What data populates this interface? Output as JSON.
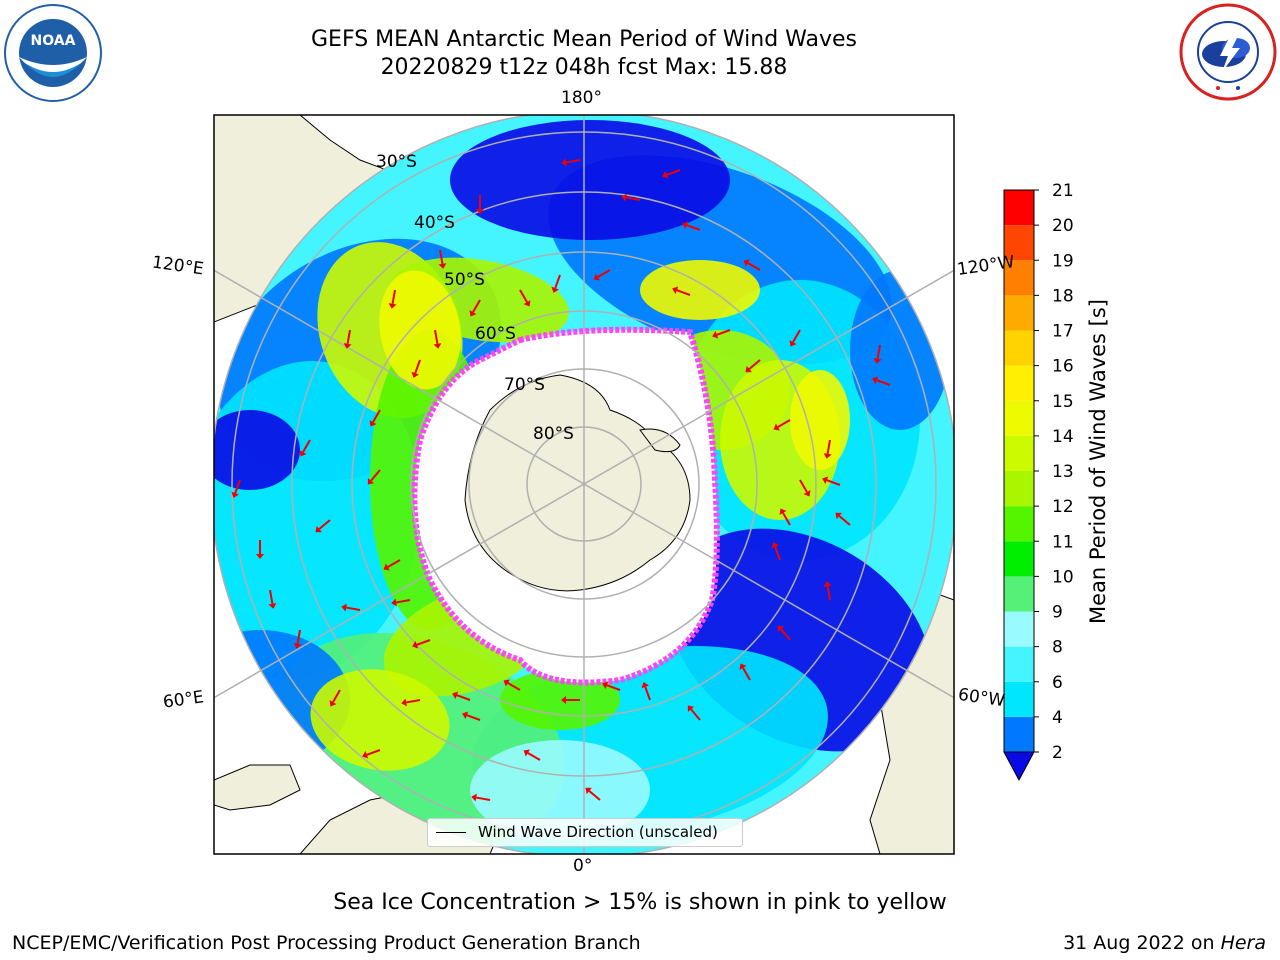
{
  "title": {
    "line1": "GEFS MEAN Antarctic Mean Period of Wind Waves",
    "line2": "20220829 t12z 048h fcst   Max: 15.88"
  },
  "logos": {
    "left": {
      "name": "noaa-logo",
      "text": "NOAA",
      "ring_text": "NATIONAL OCEANIC AND ATMOSPHERIC ADMINISTRATION · U.S. DEPARTMENT OF COMMERCE",
      "color": "#1f5fa8"
    },
    "right": {
      "name": "national-weather-service-logo",
      "ring_text": "NATIONAL WEATHER SERVICE",
      "color": "#d92121"
    }
  },
  "map": {
    "projection": "south-polar-stereographic",
    "lon_labels": {
      "top": "180°",
      "bottom": "0°",
      "upper_left": "120°E",
      "upper_right": "120°W",
      "lower_left": "60°E",
      "lower_right": "60°W"
    },
    "lat_labels": [
      "30°S",
      "40°S",
      "50°S",
      "60°S",
      "70°S",
      "80°S"
    ],
    "legend_label": "Wind Wave Direction (unscaled)",
    "colors": {
      "land": "#efefdc",
      "coast": "#000000",
      "grid": "#b0b0b0",
      "ice": "#ff44ff",
      "arrow": "#ee0000"
    }
  },
  "colorbar": {
    "label": "Mean Period of Wind Waves [s]",
    "ticks": [
      "2",
      "4",
      "6",
      "8",
      "9",
      "10",
      "11",
      "12",
      "13",
      "14",
      "15",
      "16",
      "17",
      "18",
      "19",
      "20",
      "21"
    ],
    "colors": [
      "#0a0ae6",
      "#0078ff",
      "#00e6ff",
      "#44f5ff",
      "#99fbff",
      "#55f077",
      "#00ee00",
      "#55f500",
      "#aaf500",
      "#ccfa00",
      "#eefa00",
      "#ffef00",
      "#ffd200",
      "#ffaa00",
      "#ff7f00",
      "#ff4600",
      "#ff0000"
    ]
  },
  "caption": "Sea Ice Concentration > 15% is shown in pink to yellow",
  "footer": {
    "left": "NCEP/EMC/Verification Post Processing Product Generation Branch",
    "right_date": "31 Aug 2022 on",
    "right_host": "Hera"
  }
}
